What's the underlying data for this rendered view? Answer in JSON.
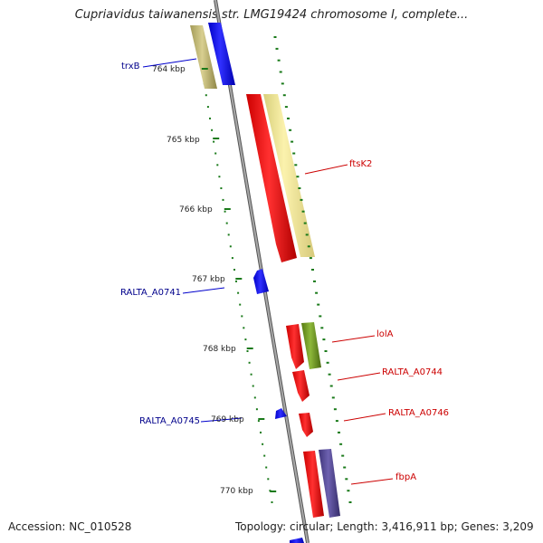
{
  "title": "Cupriavidus taiwanensis str. LMG19424 chromosome I, complete...",
  "footer": {
    "accession": "Accession: NC_010528",
    "stats": "Topology: circular; Length: 3,416,911 bp; Genes: 3,209"
  },
  "ticks": [
    "764 kbp",
    "765 kbp",
    "766 kbp",
    "767 kbp",
    "768 kbp",
    "769 kbp",
    "770 kbp"
  ],
  "genes": {
    "trxB": "trxB",
    "ftsK2": "ftsK2",
    "ralta_a0741": "RALTA_A0741",
    "lolA": "lolA",
    "ralta_a0744": "RALTA_A0744",
    "ralta_a0745": "RALTA_A0745",
    "ralta_a0746": "RALTA_A0746",
    "fbpA": "fbpA"
  },
  "colors": {
    "reverse_strand_cds": "#0000ff",
    "forward_strand_cds": "#ff0000",
    "reverse_label": "#00008b",
    "forward_label": "#cc0000",
    "ticks": "#1a7a1a",
    "backbone": "#808080"
  }
}
